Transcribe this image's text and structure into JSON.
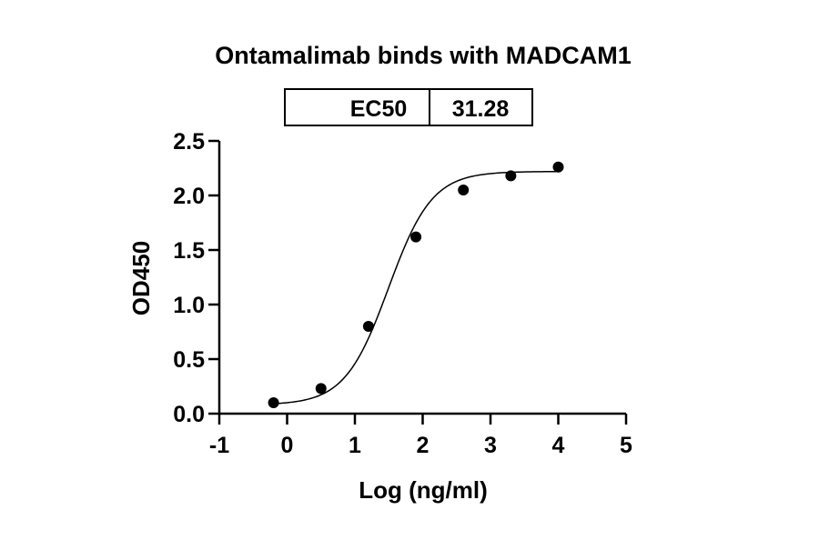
{
  "chart_data": {
    "type": "scatter",
    "title": "Ontamalimab binds with MADCAM1",
    "xlabel": "Log (ng/ml)",
    "ylabel": "OD450",
    "xlim": [
      -1,
      5
    ],
    "ylim": [
      0,
      2.5
    ],
    "x_ticks": [
      -1,
      0,
      1,
      2,
      3,
      4,
      5
    ],
    "y_ticks": [
      0.0,
      0.5,
      1.0,
      1.5,
      2.0,
      2.5
    ],
    "x_tick_labels": [
      "-1",
      "0",
      "1",
      "2",
      "3",
      "4",
      "5"
    ],
    "y_tick_labels": [
      "0.0",
      "0.5",
      "1.0",
      "1.5",
      "2.0",
      "2.5"
    ],
    "points": [
      {
        "x": -0.2,
        "y": 0.1
      },
      {
        "x": 0.5,
        "y": 0.23
      },
      {
        "x": 1.2,
        "y": 0.8
      },
      {
        "x": 1.9,
        "y": 1.62
      },
      {
        "x": 2.6,
        "y": 2.05
      },
      {
        "x": 3.3,
        "y": 2.18
      },
      {
        "x": 4.0,
        "y": 2.26
      }
    ],
    "fit": {
      "type": "4PL",
      "bottom": 0.08,
      "top": 2.22,
      "log_ec50": 1.495,
      "hill": 1.35
    },
    "grid": false,
    "legend": "none",
    "ec50_table": {
      "label": "EC50",
      "value": "31.28"
    }
  }
}
